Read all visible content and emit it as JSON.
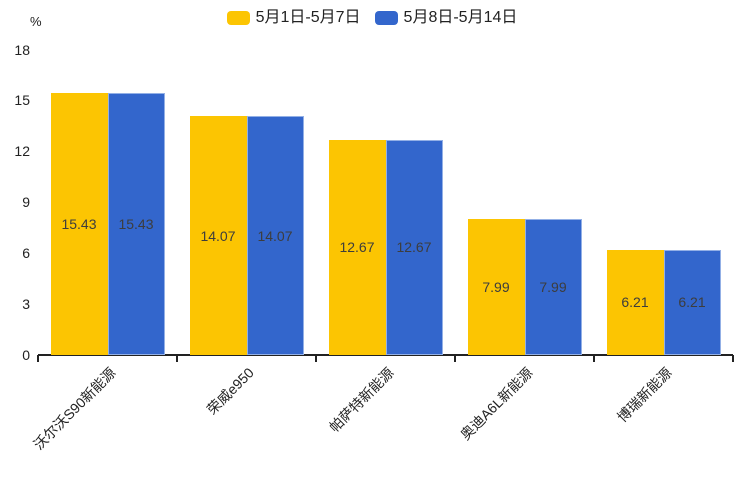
{
  "chart_data": {
    "type": "bar",
    "categories": [
      "沃尔沃S90新能源",
      "荣威e950",
      "帕萨特新能源",
      "奥迪A6L新能源",
      "博瑞新能源"
    ],
    "series": [
      {
        "name": "5月1日-5月7日",
        "color": "#fcc502",
        "values": [
          15.43,
          14.07,
          12.67,
          7.99,
          6.21
        ]
      },
      {
        "name": "5月8日-5月14日",
        "color": "#3366cc",
        "values": [
          15.43,
          14.07,
          12.67,
          7.99,
          6.21
        ]
      }
    ],
    "title": "",
    "xlabel": "",
    "ylabel": "%",
    "ylim": [
      0,
      18
    ],
    "yticks": [
      0,
      3,
      6,
      9,
      12,
      15,
      18
    ],
    "grid": false,
    "legend_position": "top-center",
    "value_labels": "inside-center",
    "value_label_format": "2-decimals",
    "axis_color": "#222222",
    "value_label_color": "#3d3d3d"
  }
}
